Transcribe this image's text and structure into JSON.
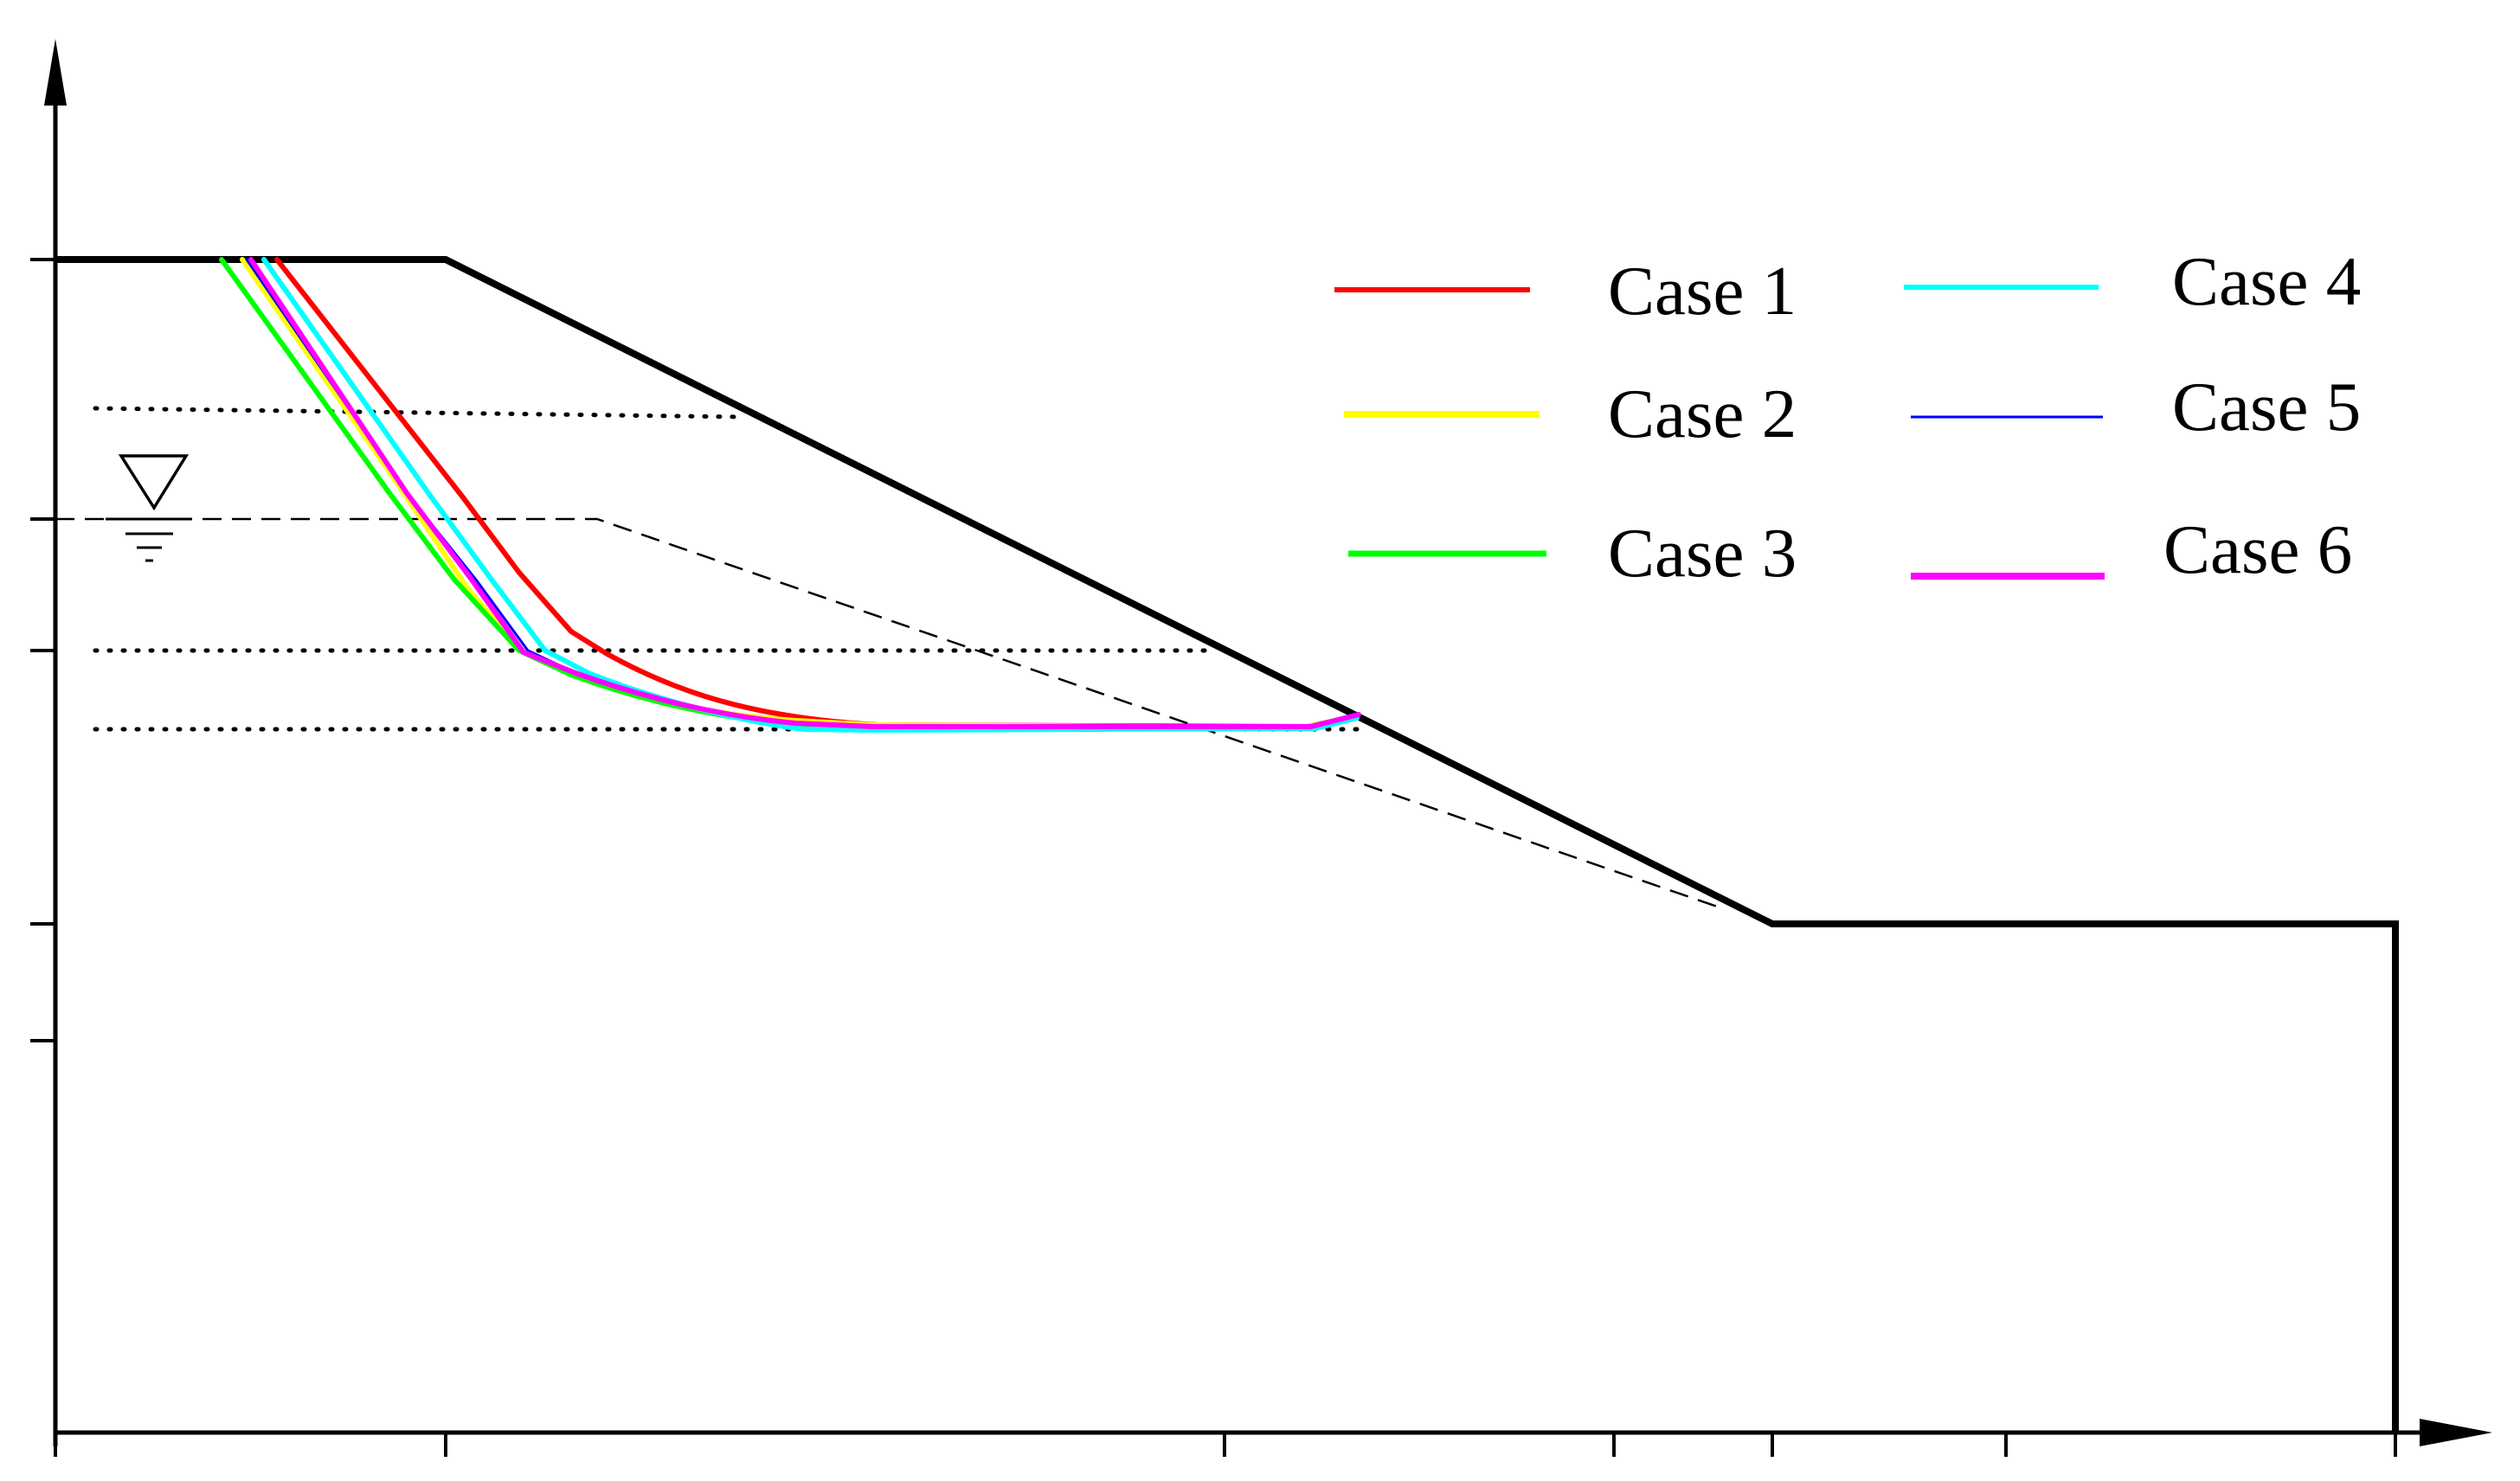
{
  "legend": {
    "items": [
      {
        "label": "Case 1",
        "color": "#ff0000"
      },
      {
        "label": "Case 2",
        "color": "#ffff00"
      },
      {
        "label": "Case 3",
        "color": "#00ff00"
      },
      {
        "label": "Case 4",
        "color": "#00ffff"
      },
      {
        "label": "Case 5",
        "color": "#0000ff"
      },
      {
        "label": "Case 6",
        "color": "#ff00ff"
      }
    ]
  },
  "styles": {
    "ground_color": "#000000",
    "water_table": "dashed",
    "layer_boundaries": "dotted"
  },
  "icons": {
    "water_level": "water-level-symbol",
    "axis_arrows": "arrow-heads"
  }
}
